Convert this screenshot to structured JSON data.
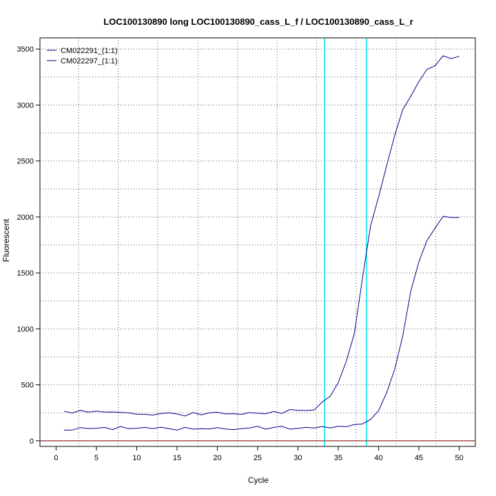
{
  "chart_data": {
    "type": "line",
    "title": "LOC100130890 long LOC100130890_cass_L_f / LOC100130890_cass_L_r",
    "xlabel": "Cycle",
    "ylabel": "Fluorescent",
    "xlim": [
      -2,
      52
    ],
    "ylim": [
      -50,
      3600
    ],
    "xticks": [
      0,
      5,
      10,
      15,
      20,
      25,
      30,
      35,
      40,
      45,
      50
    ],
    "yticks": [
      0,
      500,
      1000,
      1500,
      2000,
      2500,
      3000,
      3500
    ],
    "grid": true,
    "legend_position": "top-left",
    "vertical_grid_x": [
      2.8,
      7.7,
      12.6,
      17.6,
      22.5,
      27.4,
      32.3,
      37.2,
      42.2,
      47.1
    ],
    "horizontal_grid_y": [
      0,
      250,
      500,
      750,
      1000,
      1250,
      1500,
      1750,
      2000,
      2250,
      2500,
      2750,
      3000,
      3250,
      3500
    ],
    "threshold_lines_x": [
      33.3,
      38.5
    ],
    "baseline_y": 0,
    "colors": {
      "series": "#00008b",
      "threshold": "#00e5ee",
      "baseline": "#8b0000",
      "grid": "#555555"
    },
    "x": [
      1,
      2,
      3,
      4,
      5,
      6,
      7,
      8,
      9,
      10,
      11,
      12,
      13,
      14,
      15,
      16,
      17,
      18,
      19,
      20,
      21,
      22,
      23,
      24,
      25,
      26,
      27,
      28,
      29,
      30,
      31,
      32,
      33,
      34,
      35,
      36,
      37,
      38,
      39,
      40,
      41,
      42,
      43,
      44,
      45,
      46,
      47,
      48,
      49,
      50
    ],
    "series": [
      {
        "name": "CM022291_(1:1)",
        "values": [
          265,
          248,
          272,
          256,
          265,
          256,
          258,
          254,
          250,
          238,
          236,
          230,
          244,
          250,
          240,
          222,
          252,
          232,
          250,
          255,
          240,
          242,
          236,
          252,
          246,
          242,
          262,
          244,
          280,
          272,
          272,
          275,
          345,
          398,
          520,
          710,
          960,
          1450,
          1920,
          2180,
          2460,
          2730,
          2960,
          3080,
          3210,
          3320,
          3350,
          3440,
          3415,
          3435
        ]
      },
      {
        "name": "CM022297_(1:1)",
        "values": [
          95,
          96,
          118,
          110,
          112,
          120,
          100,
          128,
          108,
          112,
          120,
          108,
          122,
          108,
          95,
          120,
          104,
          108,
          105,
          118,
          105,
          100,
          108,
          115,
          130,
          104,
          120,
          130,
          104,
          112,
          120,
          114,
          128,
          115,
          130,
          126,
          145,
          150,
          190,
          270,
          430,
          640,
          940,
          1340,
          1600,
          1790,
          1900,
          2005,
          1995,
          1995
        ]
      }
    ]
  }
}
